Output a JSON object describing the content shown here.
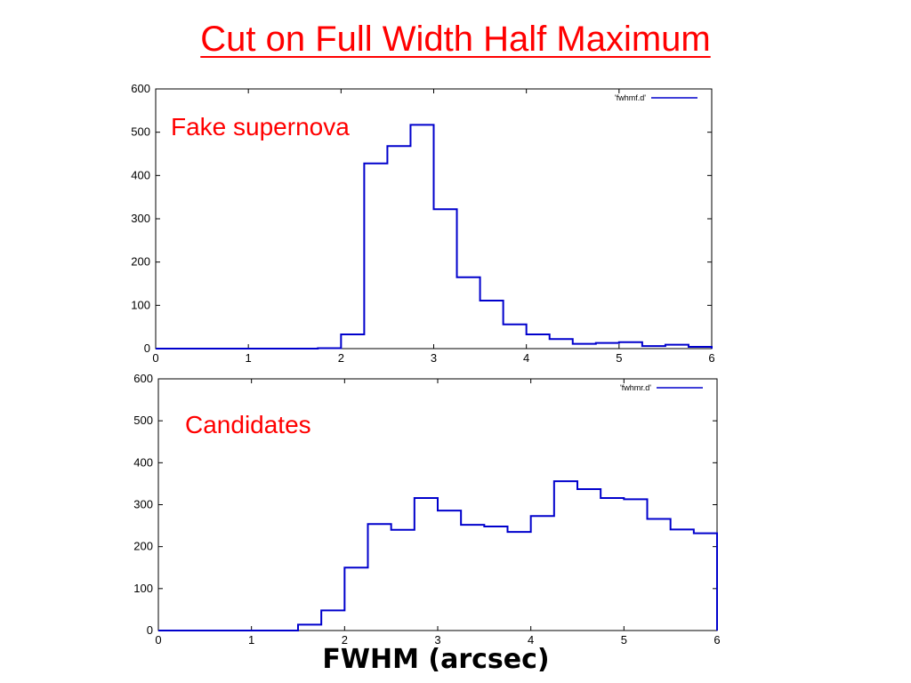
{
  "slide": {
    "title": "Cut on Full Width Half Maximum",
    "xlabel": "FWHM (arcsec)"
  },
  "chart_data": [
    {
      "type": "line",
      "step": "histogram",
      "annotation": "Fake supernova",
      "xlim": [
        0,
        6
      ],
      "ylim": [
        0,
        600
      ],
      "xticks": [
        0,
        1,
        2,
        3,
        4,
        5,
        6
      ],
      "yticks": [
        0,
        100,
        200,
        300,
        400,
        500,
        600
      ],
      "color": "#0000cc",
      "series": [
        {
          "name": "'fwhmf.d'",
          "bin_edges": [
            0,
            0.25,
            0.5,
            0.75,
            1.0,
            1.25,
            1.5,
            1.75,
            2.0,
            2.25,
            2.5,
            2.75,
            3.0,
            3.25,
            3.5,
            3.75,
            4.0,
            4.25,
            4.5,
            4.75,
            5.0,
            5.25,
            5.5,
            5.75,
            6.0
          ],
          "values": [
            0,
            0,
            0,
            0,
            0,
            0,
            0,
            1,
            33,
            428,
            468,
            517,
            322,
            165,
            111,
            56,
            33,
            22,
            11,
            13,
            15,
            6,
            9,
            4
          ]
        }
      ]
    },
    {
      "type": "line",
      "step": "histogram",
      "annotation": "Candidates",
      "xlim": [
        0,
        6
      ],
      "ylim": [
        0,
        600
      ],
      "xticks": [
        0,
        1,
        2,
        3,
        4,
        5,
        6
      ],
      "yticks": [
        0,
        100,
        200,
        300,
        400,
        500,
        600
      ],
      "color": "#0000cc",
      "series": [
        {
          "name": "'fwhmr.d'",
          "bin_edges": [
            0,
            0.25,
            0.5,
            0.75,
            1.0,
            1.25,
            1.5,
            1.75,
            2.0,
            2.25,
            2.5,
            2.75,
            3.0,
            3.25,
            3.5,
            3.75,
            4.0,
            4.25,
            4.5,
            4.75,
            5.0,
            5.25,
            5.5,
            5.75,
            6.0
          ],
          "values": [
            0,
            0,
            0,
            0,
            0,
            0,
            14,
            48,
            150,
            254,
            240,
            316,
            286,
            252,
            248,
            235,
            273,
            356,
            337,
            316,
            313,
            266,
            241,
            232
          ]
        }
      ]
    }
  ]
}
